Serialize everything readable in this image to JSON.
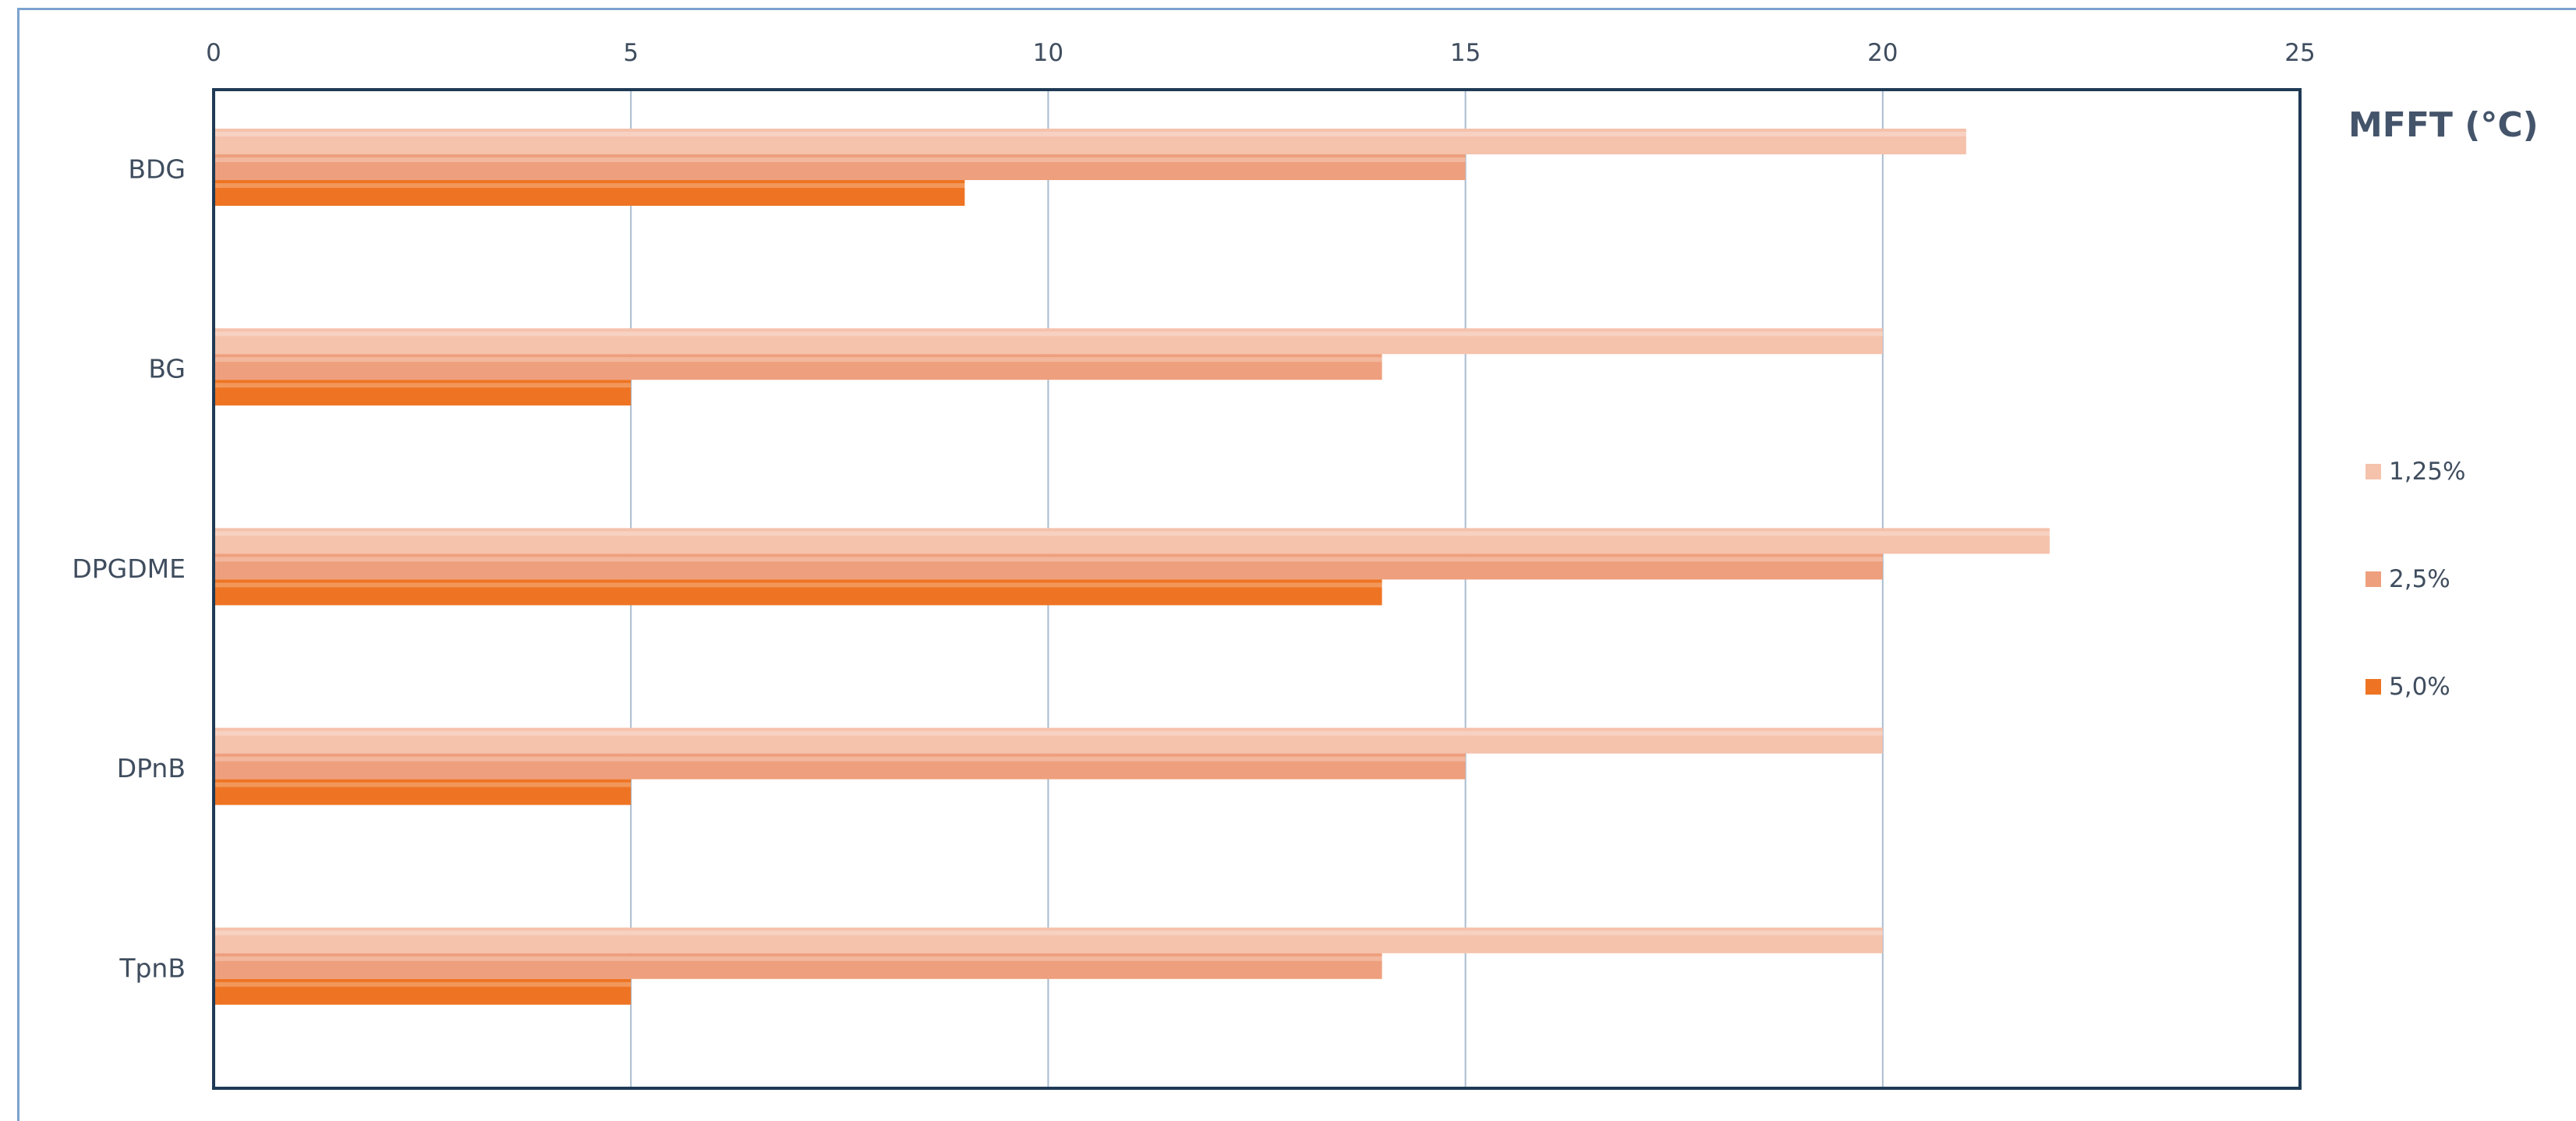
{
  "chart_data": {
    "type": "bar",
    "orientation": "horizontal",
    "title": "MFFT (°C)",
    "categories": [
      "BDG",
      "BG",
      "DPGDME",
      "DPnB",
      "TpnB"
    ],
    "series": [
      {
        "name": "1,25%",
        "values": [
          21,
          20,
          22,
          20,
          20
        ]
      },
      {
        "name": "2,5%",
        "values": [
          15,
          14,
          20,
          15,
          14
        ]
      },
      {
        "name": "5,0%",
        "values": [
          9,
          5,
          14,
          5,
          5
        ]
      }
    ],
    "xlim": [
      0,
      25
    ],
    "x_ticks": [
      "0",
      "5",
      "10",
      "15",
      "20",
      "25"
    ],
    "x_axis_position": "top",
    "grid": true,
    "legend_position": "right"
  },
  "colors": {
    "series": [
      "#f5c2ac",
      "#ee9f7d",
      "#ee7423"
    ],
    "gridline": "#a9bccf",
    "axis": "#1f3a55",
    "text": "#3f4d5e",
    "title": "#44546a",
    "frame": "#7ba3cf"
  }
}
